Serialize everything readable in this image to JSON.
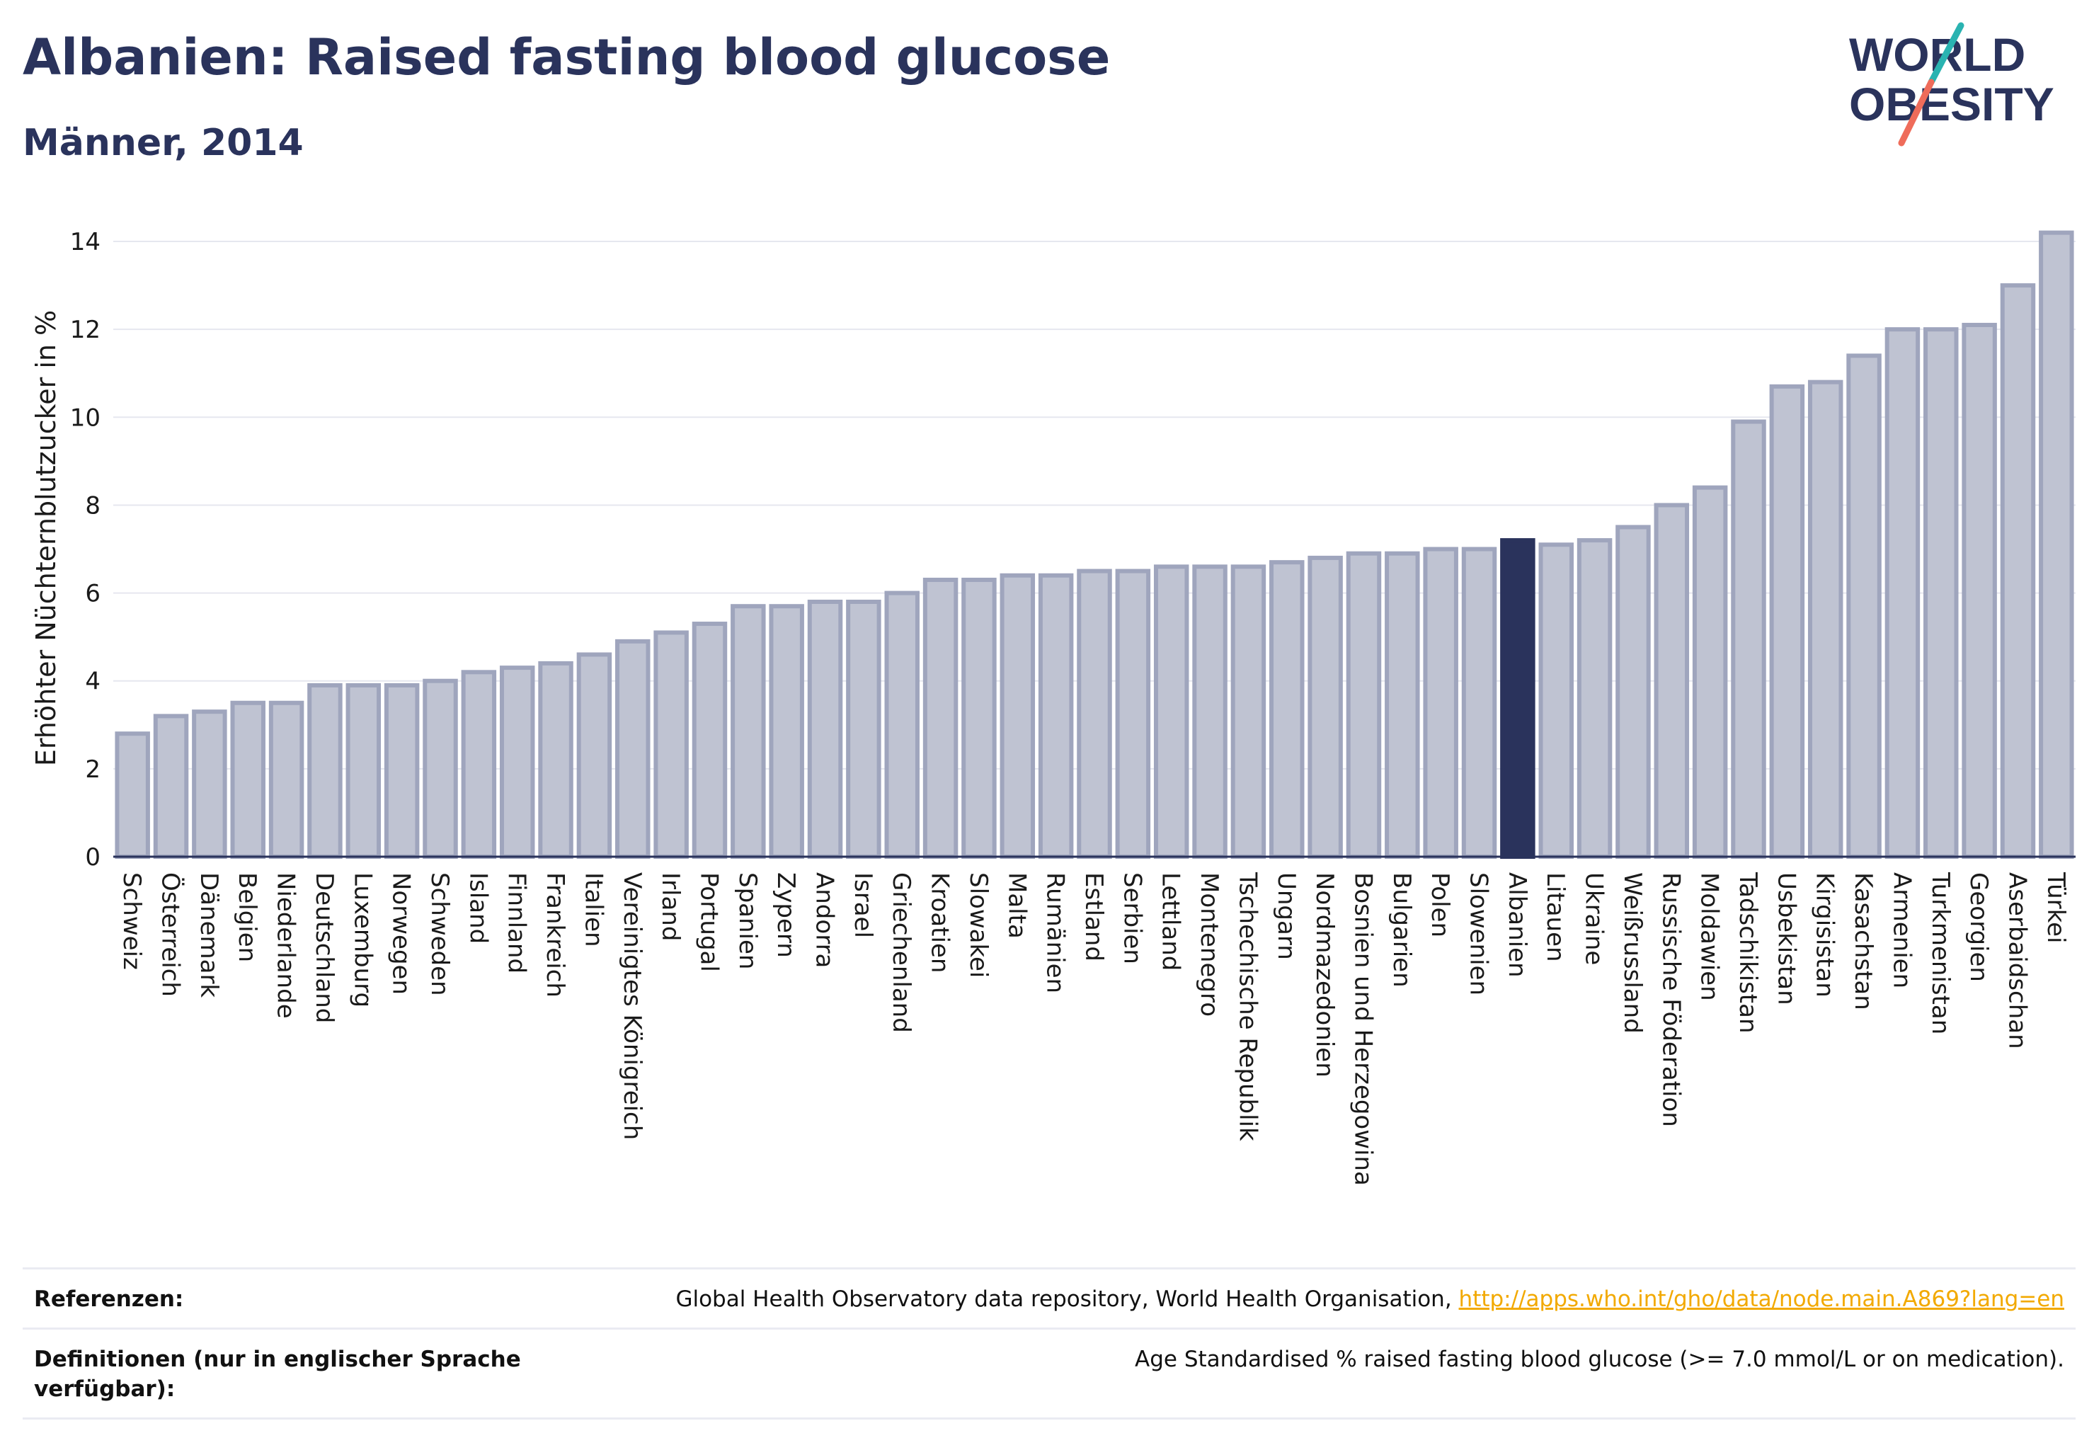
{
  "header": {
    "title": "Albanien: Raised fasting blood glucose",
    "subtitle": "Männer, 2014"
  },
  "logo": {
    "line1": "WORLD",
    "line2": "OBESITY",
    "colors": {
      "text": "#2a335c",
      "teal": "#2ab3b1",
      "coral": "#ef6c5a"
    }
  },
  "colors": {
    "bar": "#bfc3d2",
    "bar_border": "#9fa5bd",
    "highlight": "#2a335c",
    "grid": "#e6e7ef",
    "axis": "#2a335c"
  },
  "chart_data": {
    "type": "bar",
    "title": "Albanien: Raised fasting blood glucose",
    "subtitle": "Männer, 2014",
    "ylabel": "Erhöhter Nüchternblutzucker in %",
    "xlabel": "",
    "ylim": [
      0,
      14.5
    ],
    "yticks": [
      0,
      2,
      4,
      6,
      8,
      10,
      12,
      14
    ],
    "grid": true,
    "highlight": "Albanien",
    "categories": [
      "Schweiz",
      "Österreich",
      "Dänemark",
      "Belgien",
      "Niederlande",
      "Deutschland",
      "Luxemburg",
      "Norwegen",
      "Schweden",
      "Island",
      "Finnland",
      "Frankreich",
      "Italien",
      "Vereinigtes Königreich",
      "Irland",
      "Portugal",
      "Spanien",
      "Zypern",
      "Andorra",
      "Israel",
      "Griechenland",
      "Kroatien",
      "Slowakei",
      "Malta",
      "Rumänien",
      "Estland",
      "Serbien",
      "Lettland",
      "Montenegro",
      "Tschechische Republik",
      "Ungarn",
      "Nordmazedonien",
      "Bosnien und Herzegowina",
      "Bulgarien",
      "Polen",
      "Slowenien",
      "Albanien",
      "Litauen",
      "Ukraine",
      "Weißrussland",
      "Russische Föderation",
      "Moldawien",
      "Tadschikistan",
      "Usbekistan",
      "Kirgisistan",
      "Kasachstan",
      "Armenien",
      "Turkmenistan",
      "Georgien",
      "Aserbaidschan",
      "Türkei"
    ],
    "values": [
      2.8,
      3.2,
      3.3,
      3.5,
      3.5,
      3.9,
      3.9,
      3.9,
      4.0,
      4.2,
      4.3,
      4.4,
      4.6,
      4.9,
      5.1,
      5.3,
      5.7,
      5.7,
      5.8,
      5.8,
      6.0,
      6.3,
      6.3,
      6.4,
      6.4,
      6.5,
      6.5,
      6.6,
      6.6,
      6.6,
      6.7,
      6.8,
      6.9,
      6.9,
      7.0,
      7.0,
      7.2,
      7.1,
      7.2,
      7.5,
      8.0,
      8.4,
      9.9,
      10.7,
      10.8,
      11.4,
      12.0,
      12.0,
      12.1,
      13.0,
      14.2
    ]
  },
  "footer": {
    "references_label": "Referenzen:",
    "references_text": "Global Health Observatory data repository, World Health Organisation, ",
    "references_link": "http://apps.who.int/gho/data/node.main.A869?lang=en",
    "definitions_label": "Definitionen (nur in englischer Sprache verfügbar):",
    "definitions_text": "Age Standardised % raised fasting blood glucose (>= 7.0 mmol/L or on medication)."
  }
}
